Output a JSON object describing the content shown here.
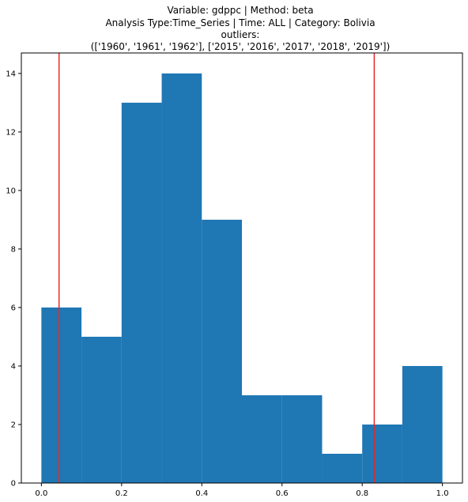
{
  "chart_data": {
    "type": "bar",
    "title_lines": [
      "Variable: gdppc | Method: beta",
      "Analysis Type:Time_Series | Time: ALL | Category: Bolivia",
      "outliers:",
      "(['1960', '1961', '1962'], ['2015', '2016', '2017', '2018', '2019'])"
    ],
    "xlabel": "",
    "ylabel": "",
    "bin_edges": [
      0.0,
      0.1,
      0.2,
      0.3,
      0.4,
      0.5,
      0.6,
      0.7,
      0.8,
      0.9,
      1.0
    ],
    "values": [
      6,
      5,
      13,
      14,
      9,
      3,
      3,
      1,
      2,
      4
    ],
    "xlim": [
      -0.05,
      1.05
    ],
    "ylim": [
      0,
      14.7
    ],
    "xticks": [
      0.0,
      0.2,
      0.4,
      0.6,
      0.8,
      1.0
    ],
    "xtick_labels": [
      "0.0",
      "0.2",
      "0.4",
      "0.6",
      "0.8",
      "1.0"
    ],
    "yticks": [
      0,
      2,
      4,
      6,
      8,
      10,
      12,
      14
    ],
    "ytick_labels": [
      "0",
      "2",
      "4",
      "6",
      "8",
      "10",
      "12",
      "14"
    ],
    "threshold_lines": [
      0.044,
      0.83
    ],
    "bar_color": "#1f77b4",
    "line_color": "#e8272a",
    "grid": false
  }
}
